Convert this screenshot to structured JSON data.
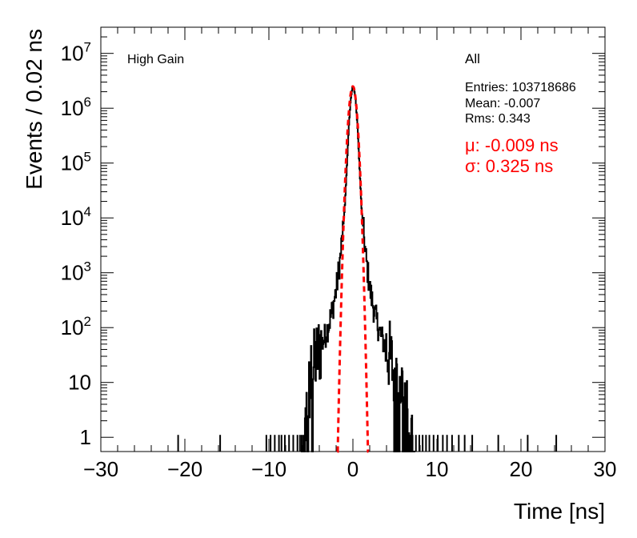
{
  "chart_data": {
    "type": "histogram",
    "xlabel": "Time [ns]",
    "ylabel": "Events / 0.02 ns",
    "xlim": [
      -30,
      30
    ],
    "ylim": [
      0.55,
      30000000
    ],
    "yscale": "log",
    "x_ticks": [
      -30,
      -20,
      -10,
      0,
      10,
      20,
      30
    ],
    "x_tick_labels": [
      "−30",
      "−20",
      "−10",
      "0",
      "10",
      "20",
      "30"
    ],
    "y_ticks": [
      {
        "value": 1,
        "base": "1",
        "exp": ""
      },
      {
        "value": 10,
        "base": "10",
        "exp": ""
      },
      {
        "value": 100,
        "base": "10",
        "exp": "2"
      },
      {
        "value": 1000,
        "base": "10",
        "exp": "3"
      },
      {
        "value": 10000,
        "base": "10",
        "exp": "4"
      },
      {
        "value": 100000,
        "base": "10",
        "exp": "5"
      },
      {
        "value": 1000000,
        "base": "10",
        "exp": "6"
      },
      {
        "value": 10000000,
        "base": "10",
        "exp": "7"
      }
    ],
    "label_left": "High Gain",
    "stats": {
      "name": "All",
      "entries": "Entries: 103718686",
      "mean": "Mean: -0.007",
      "rms": "Rms: 0.343"
    },
    "fit": {
      "mu_text": "μ: -0.009 ns",
      "sigma_text": "σ: 0.325 ns",
      "mu": -0.009,
      "sigma": 0.325,
      "amplitude": 2500000,
      "range": [
        -1.85,
        1.85
      ],
      "color": "#ff0000"
    },
    "histogram": {
      "color": "#000000",
      "core_profile": [
        [
          -4.0,
          40
        ],
        [
          -3.5,
          60
        ],
        [
          -3.0,
          100
        ],
        [
          -2.5,
          200
        ],
        [
          -2.0,
          500
        ],
        [
          -1.5,
          2000
        ],
        [
          -1.0,
          15000
        ],
        [
          -0.7,
          120000
        ],
        [
          -0.5,
          500000
        ],
        [
          -0.3,
          1400000
        ],
        [
          -0.1,
          2300000
        ],
        [
          0.0,
          2500000
        ],
        [
          0.1,
          2300000
        ],
        [
          0.3,
          1400000
        ],
        [
          0.5,
          500000
        ],
        [
          0.7,
          120000
        ],
        [
          1.0,
          15000
        ],
        [
          1.5,
          2000
        ],
        [
          2.0,
          500
        ],
        [
          2.5,
          200
        ],
        [
          3.0,
          100
        ],
        [
          3.5,
          60
        ],
        [
          4.0,
          40
        ]
      ],
      "tail_profile": [
        [
          -5.8,
          1
        ],
        [
          -5.5,
          4
        ],
        [
          -5.0,
          12
        ],
        [
          -4.5,
          25
        ],
        [
          -4.0,
          40
        ],
        [
          4.0,
          40
        ],
        [
          4.5,
          25
        ],
        [
          5.0,
          12
        ],
        [
          5.5,
          10
        ],
        [
          6.0,
          8
        ],
        [
          6.5,
          2
        ],
        [
          7.0,
          1
        ]
      ],
      "isolated_spikes": [
        -20.8,
        -15.8,
        -10.3,
        -9.8,
        -9.3,
        -8.8,
        -8.5,
        -8.1,
        -7.6,
        -7.1,
        -6.6,
        -6.3,
        -6.1,
        -5.9,
        6.8,
        7.1,
        7.5,
        7.9,
        8.3,
        8.7,
        9.1,
        9.6,
        10.1,
        10.7,
        11.2,
        11.8,
        12.6,
        13.3,
        14.2,
        17.3,
        20.8,
        24.2
      ]
    }
  }
}
